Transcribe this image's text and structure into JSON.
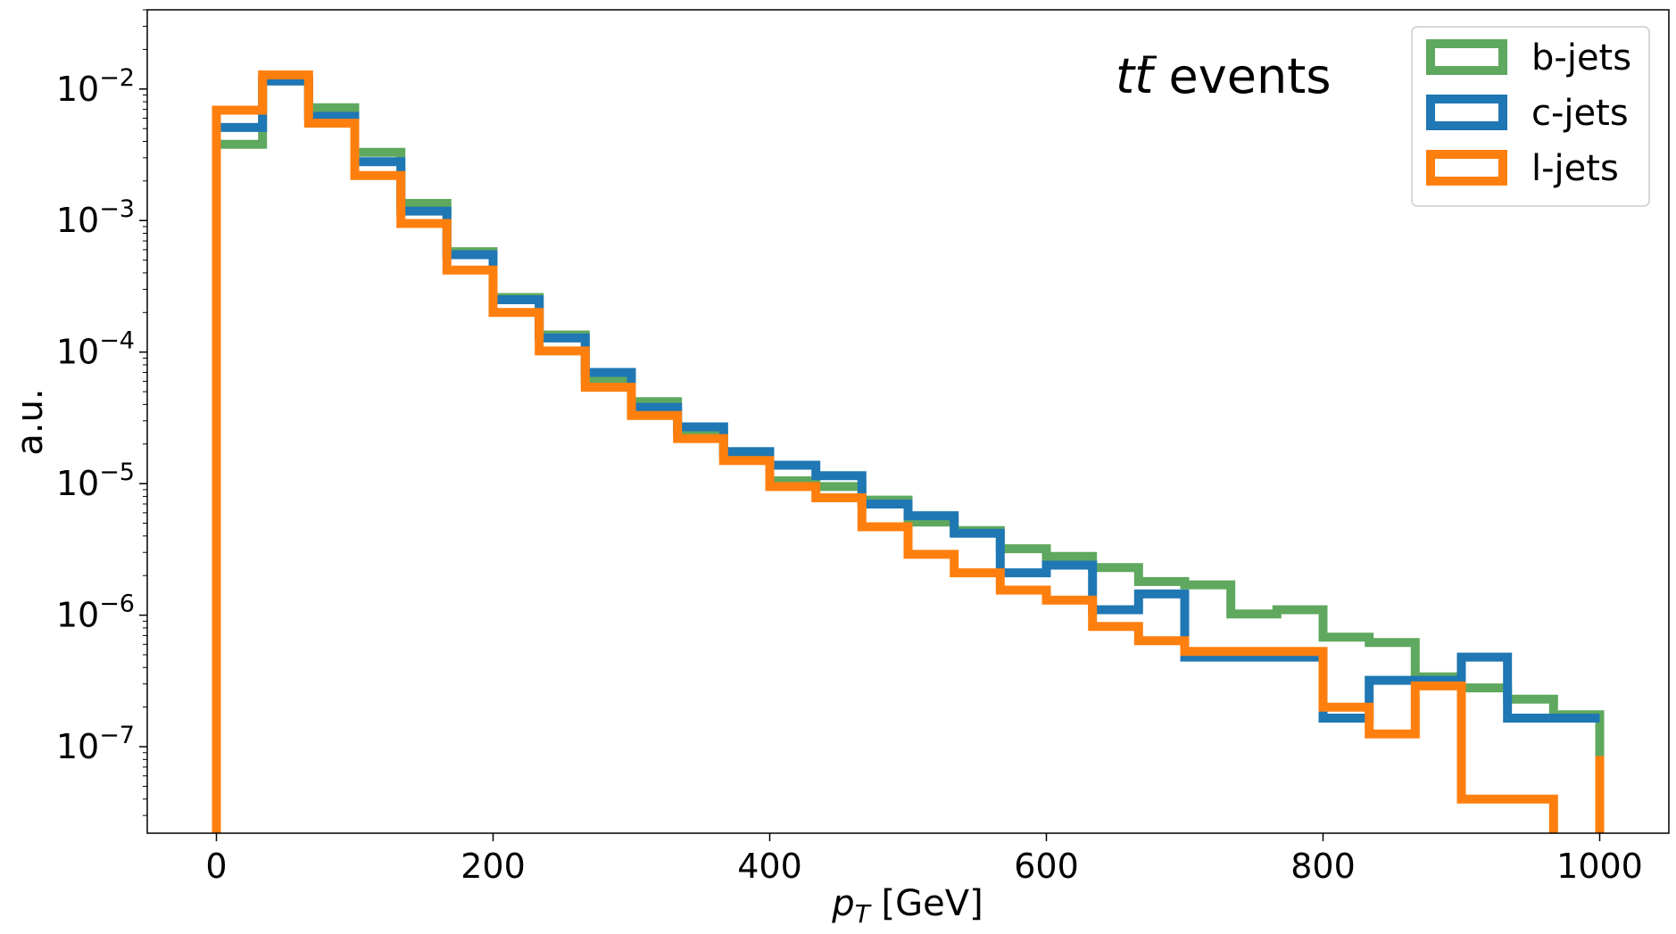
{
  "chart_data": {
    "type": "histogram-step",
    "title": "",
    "annotation": {
      "prefix": "t",
      "bar": "t",
      "text": " events"
    },
    "xlabel": {
      "var": "p",
      "sub": "T",
      "unit": " [GeV]"
    },
    "ylabel": "a.u.",
    "xlim": [
      -50,
      1050
    ],
    "ylim": [
      2.2e-08,
      0.04
    ],
    "yscale": "log",
    "x_ticks": [
      0,
      200,
      400,
      600,
      800,
      1000
    ],
    "y_ticks": [
      {
        "value": 0.01,
        "base": "10",
        "exp": "−2"
      },
      {
        "value": 0.001,
        "base": "10",
        "exp": "−3"
      },
      {
        "value": 0.0001,
        "base": "10",
        "exp": "−4"
      },
      {
        "value": 1e-05,
        "base": "10",
        "exp": "−5"
      },
      {
        "value": 1e-06,
        "base": "10",
        "exp": "−6"
      },
      {
        "value": 1e-07,
        "base": "10",
        "exp": "−7"
      }
    ],
    "bin_edges": [
      0,
      33.33,
      66.67,
      100,
      133.33,
      166.67,
      200,
      233.33,
      266.67,
      300,
      333.33,
      366.67,
      400,
      433.33,
      466.67,
      500,
      533.33,
      566.67,
      600,
      633.33,
      666.67,
      700,
      733.33,
      766.67,
      800,
      833.33,
      866.67,
      900,
      933.33,
      966.67,
      1000
    ],
    "legend_position": "top-right",
    "series": [
      {
        "name": "b-jets",
        "color": "#5fa85f",
        "values": [
          0.0038,
          0.0115,
          0.0072,
          0.0033,
          0.00135,
          0.00058,
          0.00026,
          0.000135,
          6.2e-05,
          4.2e-05,
          2.5e-05,
          1.6e-05,
          1.05e-05,
          9.5e-06,
          7.5e-06,
          5.1e-06,
          4.4e-06,
          3.2e-06,
          2.8e-06,
          2.3e-06,
          1.8e-06,
          1.7e-06,
          1.02e-06,
          1.1e-06,
          6.8e-07,
          6.2e-07,
          3.4e-07,
          2.8e-07,
          2.3e-07,
          1.75e-07,
          6e-08
        ]
      },
      {
        "name": "c-jets",
        "color": "#1f77b4",
        "values": [
          0.0051,
          0.0115,
          0.0062,
          0.0028,
          0.00118,
          0.00055,
          0.00025,
          0.000128,
          7e-05,
          3.8e-05,
          2.7e-05,
          1.75e-05,
          1.38e-05,
          1.15e-05,
          7e-06,
          5.7e-06,
          4.2e-06,
          2.1e-06,
          2.4e-06,
          1.1e-06,
          1.45e-06,
          4.8e-07,
          4.8e-07,
          4.8e-07,
          1.65e-07,
          3.2e-07,
          3.2e-07,
          4.8e-07,
          1.65e-07,
          1.65e-07,
          1.65e-07
        ]
      },
      {
        "name": "l-jets",
        "color": "#ff7f0e",
        "values": [
          0.0069,
          0.0128,
          0.0055,
          0.0022,
          0.00095,
          0.00042,
          0.0002,
          0.000102,
          5.4e-05,
          3.3e-05,
          2.2e-05,
          1.5e-05,
          9.5e-06,
          7.8e-06,
          4.7e-06,
          2.9e-06,
          2.1e-06,
          1.55e-06,
          1.3e-06,
          8.2e-07,
          6.4e-07,
          5.3e-07,
          5.3e-07,
          5.3e-07,
          2e-07,
          1.25e-07,
          2.9e-07,
          4e-08,
          4e-08,
          0,
          8.5e-08
        ]
      }
    ]
  }
}
